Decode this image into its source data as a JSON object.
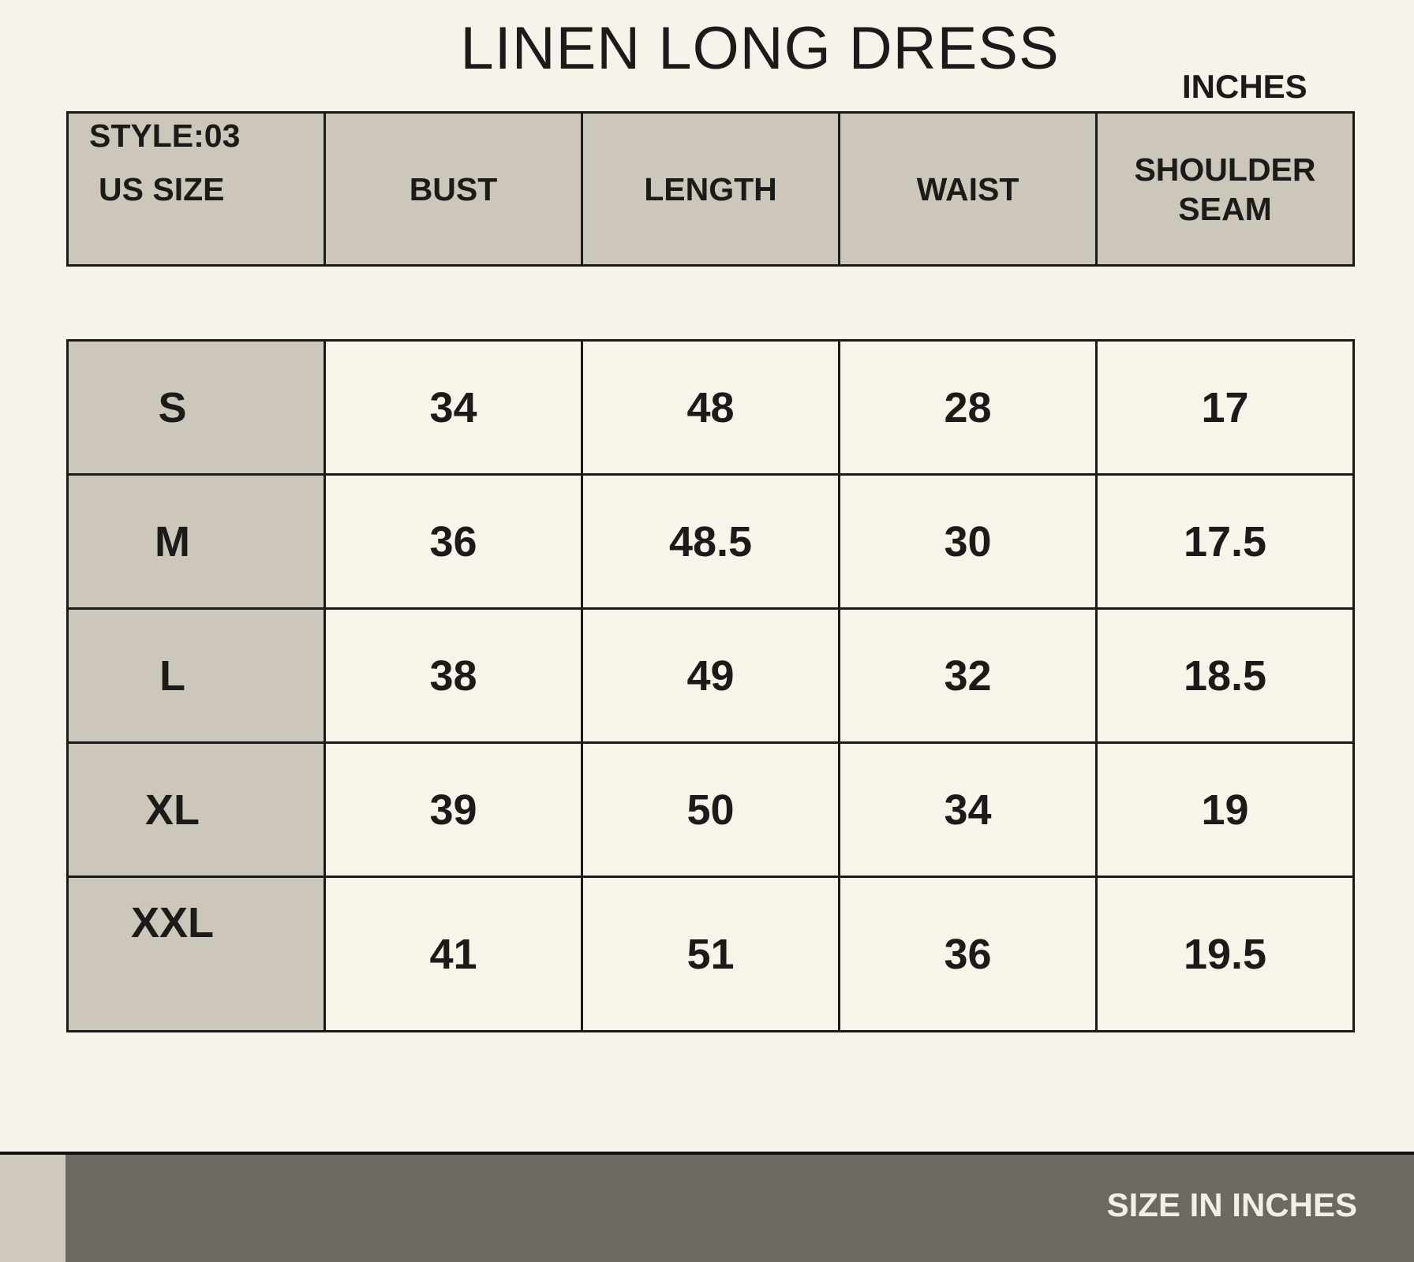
{
  "title": "LINEN LONG DRESS",
  "units_label": "INCHES",
  "header": {
    "style": "STYLE:03",
    "size_label": "US SIZE",
    "columns": [
      "BUST",
      "LENGTH",
      "WAIST",
      "SHOULDER SEAM"
    ]
  },
  "rows": [
    {
      "size": "S",
      "values": [
        "34",
        "48",
        "28",
        "17"
      ]
    },
    {
      "size": "M",
      "values": [
        "36",
        "48.5",
        "30",
        "17.5"
      ]
    },
    {
      "size": "L",
      "values": [
        "38",
        "49",
        "32",
        "18.5"
      ]
    },
    {
      "size": "XL",
      "values": [
        "39",
        "50",
        "34",
        "19"
      ]
    },
    {
      "size": "XXL",
      "values": [
        "41",
        "51",
        "36",
        "19.5"
      ]
    }
  ],
  "footer": {
    "text": "SIZE IN INCHES"
  },
  "colors": {
    "background": "#f6f3ea",
    "header_fill": "#cdc7bb",
    "footer_bar": "#6d6862"
  }
}
